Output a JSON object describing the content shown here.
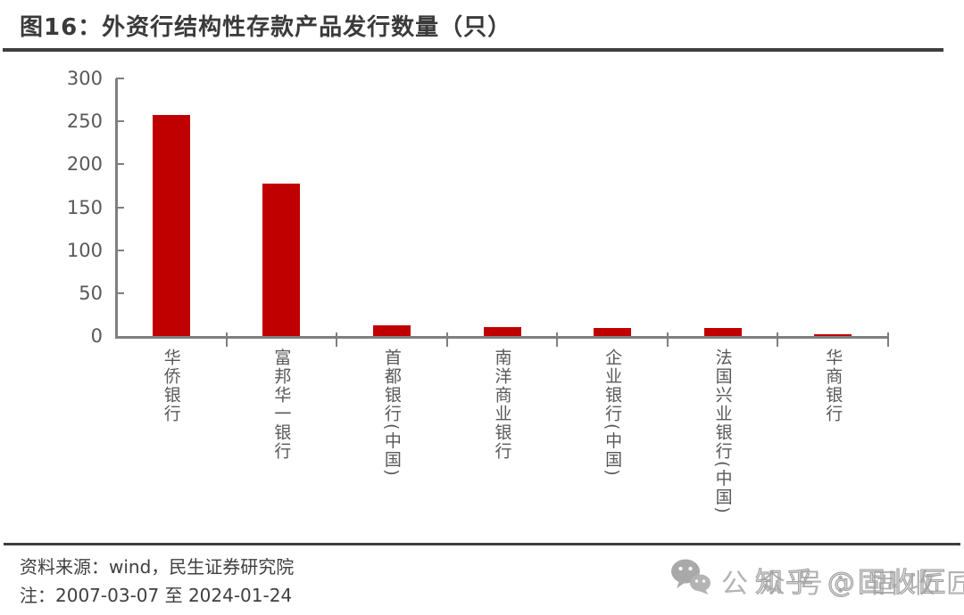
{
  "title": "图16：外资行结构性存款产品发行数量（只）",
  "chart_data": {
    "type": "bar",
    "title": "图16：外资行结构性存款产品发行数量（只）",
    "categories": [
      "华侨银行",
      "富邦华一银行",
      "首都银行(中国)",
      "南洋商业银行",
      "企业银行(中国)",
      "法国兴业银行(中国)",
      "华商银行"
    ],
    "values": [
      257,
      178,
      12,
      10,
      9,
      9,
      2
    ],
    "xlabel": "",
    "ylabel": "",
    "ylim": [
      0,
      300
    ],
    "yticks": [
      0,
      50,
      100,
      150,
      200,
      250,
      300
    ],
    "grid": false,
    "legend": false,
    "bar_color": "#C00000",
    "axis_color": "#7F7F7F",
    "tick_label_color": "#595959",
    "x_label_orientation": "vertical"
  },
  "footer": {
    "source": "资料来源：wind，民生证券研究院",
    "note": "注：2007-03-07 至 2024-01-24"
  },
  "watermark": {
    "layer1": "公众号：固收匠",
    "layer2": "知乎 @固收匠"
  }
}
